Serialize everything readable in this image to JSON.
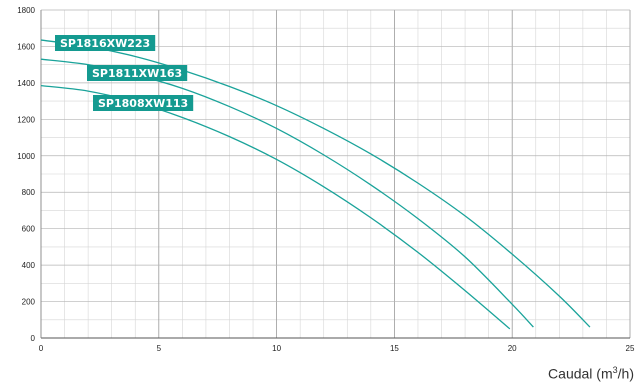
{
  "chart_data": {
    "type": "line",
    "title": "",
    "xlabel_prefix": "Caudal (m",
    "xlabel_sup": "3",
    "xlabel_suffix": "/h)",
    "ylabel": "",
    "xlim": [
      0,
      25
    ],
    "ylim": [
      0,
      1800
    ],
    "x_ticks": [
      0,
      5,
      10,
      15,
      20,
      25
    ],
    "y_ticks": [
      0,
      200,
      400,
      600,
      800,
      1000,
      1200,
      1400,
      1600,
      1800
    ],
    "grid": true,
    "legend": "labels on curves",
    "series_color": "#1aa39a",
    "label_bg_color": "#149a90",
    "series": [
      {
        "name": "SP1816XW223",
        "x": [
          0,
          2,
          4,
          6,
          8,
          10,
          12,
          14,
          16,
          18,
          20,
          22,
          23.3
        ],
        "y": [
          1635,
          1600,
          1545,
          1470,
          1380,
          1275,
          1150,
          1010,
          850,
          670,
          460,
          230,
          60
        ]
      },
      {
        "name": "SP1811XW163",
        "x": [
          0,
          2,
          4,
          6,
          8,
          10,
          12,
          14,
          16,
          18,
          20,
          20.9
        ],
        "y": [
          1530,
          1500,
          1445,
          1370,
          1270,
          1150,
          1005,
          840,
          655,
          445,
          185,
          60
        ]
      },
      {
        "name": "SP1808XW113",
        "x": [
          0,
          2,
          4,
          6,
          8,
          10,
          12,
          14,
          16,
          18,
          19.9
        ],
        "y": [
          1385,
          1355,
          1295,
          1210,
          1105,
          980,
          830,
          660,
          470,
          260,
          50
        ]
      }
    ]
  }
}
